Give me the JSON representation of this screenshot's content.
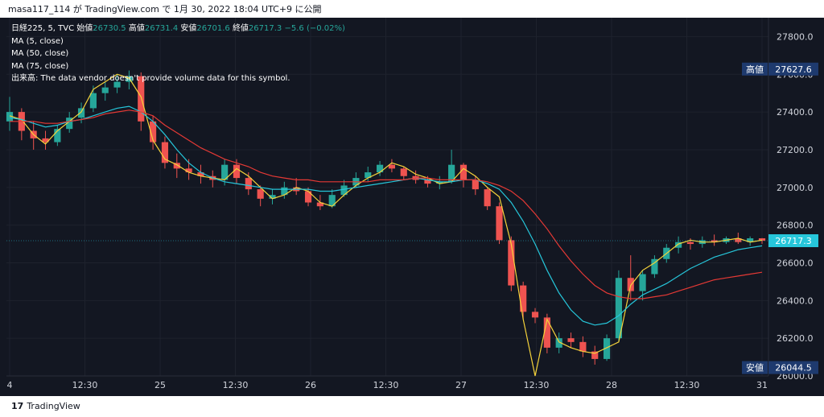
{
  "header": {
    "publisher": "masa117_114 が TradingView.com で 1月 30, 2022 18:04 UTC+9 に公開"
  },
  "legend": {
    "symbol": "日経225, 5, TVC",
    "open_label": "始値",
    "open_value": "26730.5",
    "high_label": "高値",
    "high_value": "26731.4",
    "low_label": "安値",
    "low_value": "26701.6",
    "close_label": "終値",
    "close_value": "26717.3",
    "change": "−5.6 (−0.02%)",
    "ma5": "MA (5, close)",
    "ma50": "MA (50, close)",
    "ma75": "MA (75, close)",
    "volume_note": "出来高: The data vendor doesn't provide volume data for this symbol."
  },
  "footer": {
    "logo": "17",
    "brand": "TradingView"
  },
  "colors": {
    "background": "#131722",
    "up": "#26a69a",
    "down": "#ef5350",
    "ma5": "#f5d33b",
    "ma50": "#26c6da",
    "ma75": "#e53935",
    "last_price": "#26c6da",
    "high_low_badge": "#1e3a6e"
  },
  "chart_data": {
    "type": "candlestick",
    "title": "日経225, 5, TVC",
    "ylim": [
      26000,
      27900
    ],
    "y_ticks": [
      "27800.0",
      "27600.0",
      "27400.0",
      "27200.0",
      "27000.0",
      "26800.0",
      "26600.0",
      "26400.0",
      "26200.0",
      "26000.0"
    ],
    "x_ticks": [
      "4",
      "12:30",
      "25",
      "12:30",
      "26",
      "12:30",
      "27",
      "12:30",
      "28",
      "12:30",
      "31"
    ],
    "high_badge": {
      "label": "高値",
      "value": "27627.6"
    },
    "low_badge": {
      "label": "安値",
      "value": "26044.5"
    },
    "last_price": "26717.3",
    "series": [
      {
        "name": "MA (5, close)",
        "values": [
          27380,
          27360,
          27280,
          27230,
          27300,
          27350,
          27400,
          27520,
          27560,
          27600,
          27580,
          27480,
          27250,
          27150,
          27120,
          27080,
          27060,
          27050,
          27040,
          27100,
          27060,
          27000,
          26940,
          26960,
          27000,
          26980,
          26920,
          26900,
          26960,
          27010,
          27050,
          27080,
          27130,
          27110,
          27070,
          27050,
          27020,
          27030,
          27100,
          27060,
          27000,
          26950,
          26700,
          26300,
          26000,
          26300,
          26180,
          26150,
          26130,
          26120,
          26150,
          26180,
          26480,
          26560,
          26600,
          26650,
          26700,
          26720,
          26710,
          26710,
          26720,
          26730,
          26710,
          26720
        ]
      },
      {
        "name": "MA (50, close)",
        "values": [
          27370,
          27360,
          27340,
          27320,
          27330,
          27350,
          27360,
          27380,
          27400,
          27420,
          27430,
          27400,
          27350,
          27280,
          27200,
          27130,
          27080,
          27050,
          27030,
          27020,
          27010,
          27000,
          26990,
          26990,
          26990,
          26990,
          26980,
          26980,
          26990,
          27000,
          27010,
          27020,
          27030,
          27040,
          27050,
          27040,
          27030,
          27030,
          27040,
          27040,
          27020,
          26990,
          26920,
          26820,
          26700,
          26560,
          26440,
          26350,
          26290,
          26270,
          26280,
          26320,
          26380,
          26430,
          26460,
          26490,
          26530,
          26570,
          26600,
          26630,
          26650,
          26670,
          26680,
          26690
        ]
      },
      {
        "name": "MA (75, close)",
        "values": [
          27350,
          27350,
          27350,
          27340,
          27340,
          27350,
          27360,
          27370,
          27390,
          27400,
          27410,
          27400,
          27380,
          27330,
          27290,
          27250,
          27210,
          27180,
          27150,
          27130,
          27110,
          27080,
          27060,
          27050,
          27040,
          27040,
          27030,
          27030,
          27030,
          27030,
          27030,
          27040,
          27040,
          27040,
          27050,
          27050,
          27040,
          27040,
          27040,
          27040,
          27030,
          27010,
          26980,
          26930,
          26860,
          26780,
          26690,
          26610,
          26540,
          26480,
          26440,
          26420,
          26410,
          26410,
          26420,
          26430,
          26450,
          26470,
          26490,
          26510,
          26520,
          26530,
          26540,
          26550
        ]
      }
    ],
    "candles": [
      [
        27350,
        27480,
        27300,
        27400
      ],
      [
        27400,
        27420,
        27250,
        27300
      ],
      [
        27300,
        27350,
        27200,
        27260
      ],
      [
        27260,
        27300,
        27200,
        27240
      ],
      [
        27240,
        27330,
        27220,
        27310
      ],
      [
        27310,
        27400,
        27290,
        27370
      ],
      [
        27370,
        27450,
        27340,
        27420
      ],
      [
        27420,
        27540,
        27400,
        27500
      ],
      [
        27500,
        27560,
        27460,
        27530
      ],
      [
        27530,
        27600,
        27500,
        27560
      ],
      [
        27560,
        27620,
        27520,
        27590
      ],
      [
        27590,
        27610,
        27300,
        27350
      ],
      [
        27350,
        27380,
        27200,
        27240
      ],
      [
        27240,
        27270,
        27100,
        27130
      ],
      [
        27130,
        27180,
        27050,
        27100
      ],
      [
        27100,
        27150,
        27040,
        27080
      ],
      [
        27080,
        27120,
        27020,
        27060
      ],
      [
        27060,
        27090,
        27000,
        27040
      ],
      [
        27040,
        27150,
        27010,
        27120
      ],
      [
        27120,
        27150,
        27020,
        27050
      ],
      [
        27050,
        27080,
        26960,
        26990
      ],
      [
        26990,
        27010,
        26900,
        26940
      ],
      [
        26940,
        26990,
        26910,
        26960
      ],
      [
        26960,
        27030,
        26940,
        27000
      ],
      [
        27000,
        27050,
        26960,
        26980
      ],
      [
        26980,
        27000,
        26900,
        26920
      ],
      [
        26920,
        26960,
        26880,
        26900
      ],
      [
        26900,
        26990,
        26890,
        26960
      ],
      [
        26960,
        27040,
        26950,
        27010
      ],
      [
        27010,
        27080,
        27000,
        27050
      ],
      [
        27050,
        27110,
        27030,
        27080
      ],
      [
        27080,
        27140,
        27060,
        27120
      ],
      [
        27120,
        27150,
        27080,
        27100
      ],
      [
        27100,
        27110,
        27040,
        27060
      ],
      [
        27060,
        27090,
        27020,
        27040
      ],
      [
        27040,
        27060,
        27000,
        27020
      ],
      [
        27020,
        27060,
        26990,
        27030
      ],
      [
        27030,
        27200,
        27020,
        27120
      ],
      [
        27120,
        27130,
        27000,
        27040
      ],
      [
        27040,
        27060,
        26960,
        26990
      ],
      [
        26990,
        27000,
        26880,
        26900
      ],
      [
        26900,
        26920,
        26700,
        26720
      ],
      [
        26720,
        26740,
        26450,
        26480
      ],
      [
        26480,
        26500,
        26300,
        26340
      ],
      [
        26340,
        26360,
        26280,
        26310
      ],
      [
        26310,
        26330,
        26120,
        26150
      ],
      [
        26150,
        26230,
        26120,
        26200
      ],
      [
        26200,
        26230,
        26150,
        26180
      ],
      [
        26180,
        26210,
        26100,
        26130
      ],
      [
        26130,
        26160,
        26060,
        26090
      ],
      [
        26090,
        26220,
        26080,
        26200
      ],
      [
        26200,
        26560,
        26180,
        26520
      ],
      [
        26520,
        26640,
        26400,
        26450
      ],
      [
        26450,
        26560,
        26400,
        26540
      ],
      [
        26540,
        26640,
        26520,
        26620
      ],
      [
        26620,
        26700,
        26600,
        26680
      ],
      [
        26680,
        26740,
        26650,
        26710
      ],
      [
        26710,
        26730,
        26670,
        26700
      ],
      [
        26700,
        26740,
        26680,
        26720
      ],
      [
        26720,
        26750,
        26690,
        26710
      ],
      [
        26710,
        26740,
        26700,
        26730
      ],
      [
        26730,
        26760,
        26700,
        26710
      ],
      [
        26710,
        26740,
        26690,
        26730
      ],
      [
        26730,
        26731,
        26701,
        26717
      ]
    ]
  }
}
